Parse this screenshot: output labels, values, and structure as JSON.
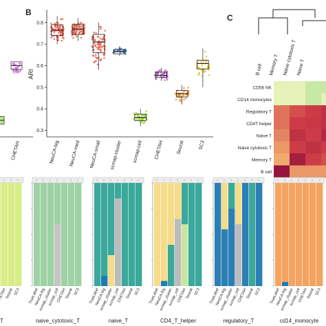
{
  "panels": {
    "b": {
      "letter": "B"
    },
    "c": {
      "letter": "C"
    }
  },
  "chart_data": [
    {
      "id": "panel-a-partial",
      "type": "box",
      "categories": [
        "CHETAH"
      ],
      "ylim": [
        0.3,
        0.8
      ]
    },
    {
      "id": "panel-b",
      "type": "box",
      "ylabel": "ARI",
      "ylim": [
        0.27,
        0.86
      ],
      "yticks": [
        0.3,
        0.4,
        0.5,
        0.6,
        0.7,
        0.8
      ],
      "categories": [
        "NeuCA-big",
        "NeuCA-med",
        "NeuCA-small",
        "scmap-cluster",
        "scmap-cell",
        "CHETAH",
        "Seurat",
        "SC3"
      ],
      "colors": [
        "#e8503a",
        "#e8503a",
        "#e8503a",
        "#4a7fc0",
        "#8ed61e",
        "#b54fbf",
        "#ef8a1d",
        "#e0c21a"
      ],
      "boxes": [
        {
          "q1": 0.74,
          "median": 0.765,
          "q3": 0.79,
          "lo": 0.7,
          "hi": 0.83
        },
        {
          "q1": 0.745,
          "median": 0.77,
          "q3": 0.79,
          "lo": 0.715,
          "hi": 0.82
        },
        {
          "q1": 0.66,
          "median": 0.71,
          "q3": 0.745,
          "lo": 0.58,
          "hi": 0.8
        },
        {
          "q1": 0.655,
          "median": 0.665,
          "q3": 0.675,
          "lo": 0.645,
          "hi": 0.69
        },
        {
          "q1": 0.345,
          "median": 0.36,
          "q3": 0.375,
          "lo": 0.32,
          "hi": 0.4
        },
        {
          "q1": 0.545,
          "median": 0.555,
          "q3": 0.57,
          "lo": 0.53,
          "hi": 0.59
        },
        {
          "q1": 0.455,
          "median": 0.47,
          "q3": 0.485,
          "lo": 0.42,
          "hi": 0.51
        },
        {
          "q1": 0.585,
          "median": 0.61,
          "q3": 0.625,
          "lo": 0.5,
          "hi": 0.68
        }
      ]
    },
    {
      "id": "panel-c",
      "type": "heatmap",
      "column_labels": [
        "B cell",
        "Memory T",
        "Naive cytotoxic T",
        "Naive T"
      ],
      "row_labels": [
        "CD56 NK",
        "CD14 monocytes",
        "Regulatory T",
        "CD4T helper",
        "Naive T",
        "Naive cytotoxic T",
        "Memory T",
        "B cell"
      ],
      "values": [
        [
          0.3,
          0.25,
          0.2,
          0.22
        ],
        [
          0.3,
          0.28,
          0.24,
          0.26
        ],
        [
          0.65,
          0.75,
          0.8,
          0.85
        ],
        [
          0.65,
          0.8,
          0.82,
          0.85
        ],
        [
          0.6,
          0.85,
          0.8,
          0.9
        ],
        [
          0.55,
          0.8,
          0.85,
          0.8
        ],
        [
          0.5,
          0.95,
          0.8,
          0.75
        ],
        [
          1.0,
          0.55,
          0.55,
          0.55
        ]
      ]
    },
    {
      "id": "panel-d",
      "type": "stacked-bar",
      "method_labels": [
        "TrueLabel",
        "NeuCA-big",
        "scmap_cluster",
        "scmap_cell",
        "CHETAH",
        "Seurat",
        "SC3"
      ],
      "panels": [
        {
          "title": "ry_T",
          "bars": [
            [
              {
                "c": "#d8ec88",
                "v": 1
              }
            ],
            [
              {
                "c": "#7bcd9b",
                "v": 0.1
              },
              {
                "c": "#2a7fb4",
                "v": 0.04
              },
              {
                "c": "#d8ec88",
                "v": 0.86
              }
            ],
            [
              {
                "c": "#d8ec88",
                "v": 1
              }
            ],
            [
              {
                "c": "#d8ec88",
                "v": 1
              }
            ],
            [
              {
                "c": "#d8ec88",
                "v": 1
              }
            ],
            [
              {
                "c": "#d8ec88",
                "v": 1
              }
            ],
            [
              {
                "c": "#d8ec88",
                "v": 1
              }
            ]
          ]
        },
        {
          "title": "naive_cytotoxic_T",
          "bars": [
            [
              {
                "c": "#9ed2a4",
                "v": 1
              }
            ],
            [
              {
                "c": "#9ed2a4",
                "v": 1
              }
            ],
            [
              {
                "c": "#9ed2a4",
                "v": 1
              }
            ],
            [
              {
                "c": "#9ed2a4",
                "v": 0.4
              },
              {
                "c": "#c5c5c5",
                "v": 0.6
              }
            ],
            [
              {
                "c": "#9ed2a4",
                "v": 1
              }
            ],
            [
              {
                "c": "#9ed2a4",
                "v": 1
              }
            ],
            [
              {
                "c": "#9ed2a4",
                "v": 1
              }
            ]
          ]
        },
        {
          "title": "naive_T",
          "bars": [
            [
              {
                "c": "#3aa89a",
                "v": 1
              }
            ],
            [
              {
                "c": "#3aa89a",
                "v": 0.9
              },
              {
                "c": "#1e7ab7",
                "v": 0.1
              }
            ],
            [
              {
                "c": "#3aa89a",
                "v": 0.7
              },
              {
                "c": "#f5dc8a",
                "v": 0.3
              }
            ],
            [
              {
                "c": "#3aa89a",
                "v": 0.15
              },
              {
                "c": "#bcbcbc",
                "v": 0.85
              }
            ],
            [
              {
                "c": "#3aa89a",
                "v": 1
              }
            ],
            [
              {
                "c": "#3aa89a",
                "v": 1
              }
            ],
            [
              {
                "c": "#3aa89a",
                "v": 1
              }
            ]
          ]
        },
        {
          "title": "CD4_T_helper",
          "bars": [
            [
              {
                "c": "#f5dc8a",
                "v": 1
              }
            ],
            [
              {
                "c": "#f5dc8a",
                "v": 0.95
              },
              {
                "c": "#1e7ab7",
                "v": 0.05
              }
            ],
            [
              {
                "c": "#f5dc8a",
                "v": 0.6
              },
              {
                "c": "#3aa89a",
                "v": 0.4
              }
            ],
            [
              {
                "c": "#f5dc8a",
                "v": 0.35
              },
              {
                "c": "#bcbcbc",
                "v": 0.65
              }
            ],
            [
              {
                "c": "#3aa89a",
                "v": 0.4
              },
              {
                "c": "#c8e6a0",
                "v": 0.6
              }
            ],
            [
              {
                "c": "#3aa89a",
                "v": 1
              }
            ],
            [
              {
                "c": "#3aa89a",
                "v": 1
              }
            ]
          ]
        },
        {
          "title": "regulatory_T",
          "bars": [
            [
              {
                "c": "#2a7fb4",
                "v": 1
              }
            ],
            [
              {
                "c": "#f5dc8a",
                "v": 0.45
              },
              {
                "c": "#2a7fb4",
                "v": 0.55
              }
            ],
            [
              {
                "c": "#3aa89a",
                "v": 0.25
              },
              {
                "c": "#2a7fb4",
                "v": 0.75
              }
            ],
            [
              {
                "c": "#f5dc8a",
                "v": 0.4
              },
              {
                "c": "#bcbcbc",
                "v": 0.6
              }
            ],
            [
              {
                "c": "#2a7fb4",
                "v": 1
              }
            ],
            [
              {
                "c": "#3aa89a",
                "v": 1
              }
            ],
            [
              {
                "c": "#2a7fb4",
                "v": 1
              }
            ]
          ]
        },
        {
          "title": "cd14_monocyte",
          "bars": [
            [
              {
                "c": "#f4a460",
                "v": 1
              }
            ],
            [
              {
                "c": "#f4a460",
                "v": 0.96
              },
              {
                "c": "#1e7ab7",
                "v": 0.04
              }
            ],
            [
              {
                "c": "#f4a460",
                "v": 1
              }
            ],
            [
              {
                "c": "#f4a460",
                "v": 1
              }
            ],
            [
              {
                "c": "#f4a460",
                "v": 1
              }
            ],
            [
              {
                "c": "#f4a460",
                "v": 1
              }
            ],
            [
              {
                "c": "#f4a460",
                "v": 1
              }
            ]
          ]
        }
      ]
    }
  ]
}
